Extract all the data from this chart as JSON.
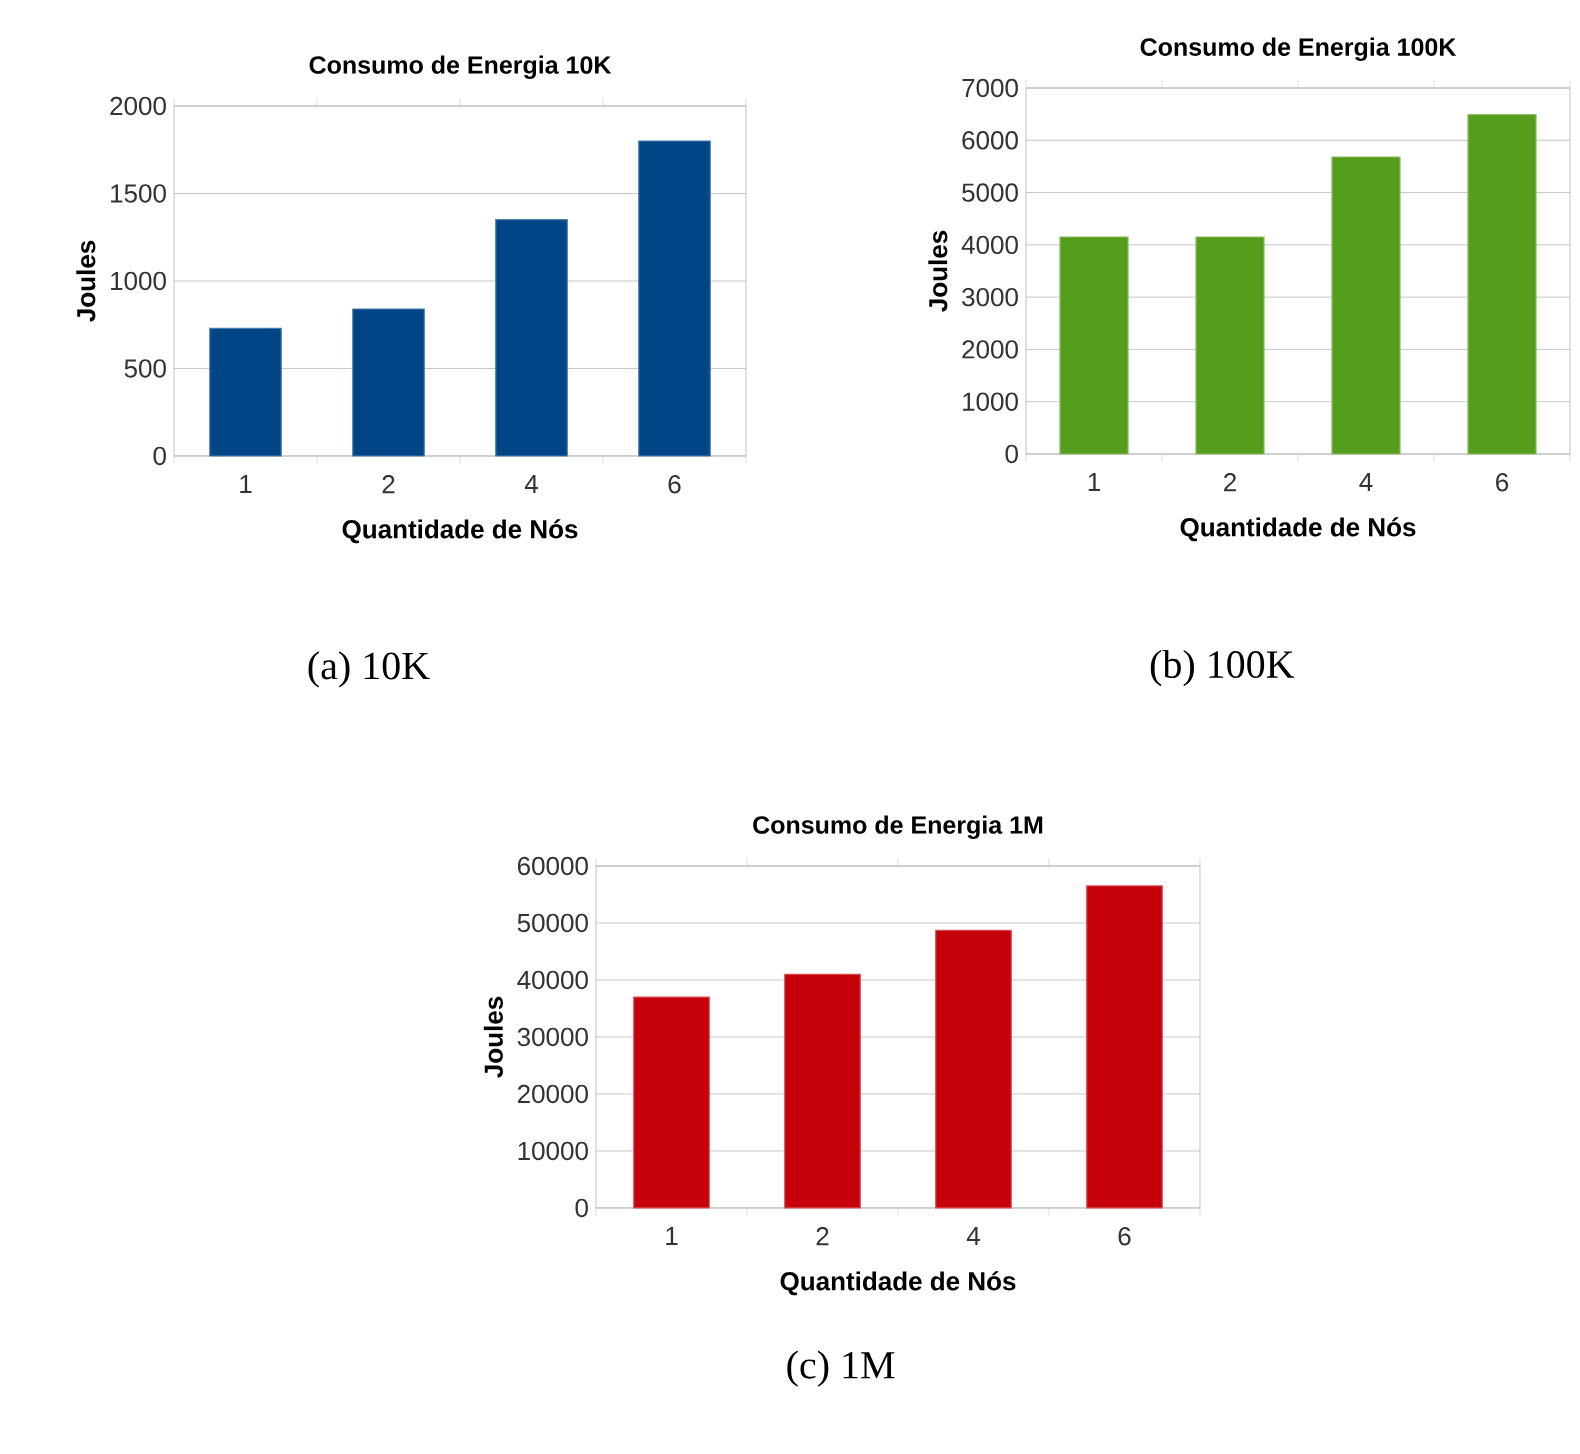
{
  "chart_data": [
    {
      "type": "bar",
      "title": "Consumo de Energia 10K",
      "xlabel": "Quantidade de Nós",
      "ylabel": "Joules",
      "categories": [
        "1",
        "2",
        "4",
        "6"
      ],
      "values": [
        730,
        840,
        1350,
        1800
      ],
      "color": "#004586",
      "ylim": [
        0,
        2000
      ],
      "yticks": [
        0,
        500,
        1000,
        1500,
        2000
      ],
      "grid": "y",
      "annotations": [
        "(a) 10K"
      ]
    },
    {
      "type": "bar",
      "title": "Consumo de Energia 100K",
      "xlabel": "Quantidade de Nós",
      "ylabel": "Joules",
      "categories": [
        "1",
        "2",
        "4",
        "6"
      ],
      "values": [
        4150,
        4150,
        5680,
        6490
      ],
      "color": "#579d1c",
      "ylim": [
        0,
        7000
      ],
      "yticks": [
        0,
        1000,
        2000,
        3000,
        4000,
        5000,
        6000,
        7000
      ],
      "grid": "y",
      "annotations": [
        "(b) 100K"
      ]
    },
    {
      "type": "bar",
      "title": "Consumo de Energia 1M",
      "xlabel": "Quantidade de Nós",
      "ylabel": "Joules",
      "categories": [
        "1",
        "2",
        "4",
        "6"
      ],
      "values": [
        37000,
        41000,
        48700,
        56500
      ],
      "color": "#c5000b",
      "ylim": [
        0,
        60000
      ],
      "yticks": [
        0,
        10000,
        20000,
        30000,
        40000,
        50000,
        60000
      ],
      "grid": "y",
      "annotations": [
        "(c) 1M"
      ]
    }
  ]
}
